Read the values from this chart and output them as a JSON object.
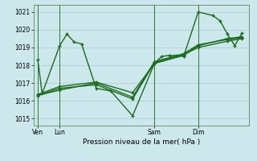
{
  "background_color": "#cce8ec",
  "grid_color": "#aacccc",
  "line_color": "#1a6b1a",
  "title": "Pression niveau de la mer( hPa )",
  "ylim": [
    1014.6,
    1021.4
  ],
  "yticks": [
    1015,
    1016,
    1017,
    1018,
    1019,
    1020,
    1021
  ],
  "x_day_labels": [
    "Ven",
    "Lun",
    "Sam",
    "Dim"
  ],
  "xlim": [
    -0.3,
    14.5
  ],
  "line1_x": [
    0.0,
    0.3,
    1.5,
    2.0,
    2.5,
    3.0,
    4.0,
    5.0,
    6.5,
    8.0,
    8.5,
    9.0,
    9.5,
    10.0,
    11.0,
    12.0,
    12.5,
    13.0,
    13.5,
    14.0
  ],
  "line1_y": [
    1018.3,
    1016.4,
    1019.1,
    1019.75,
    1019.3,
    1019.2,
    1016.7,
    1016.55,
    1015.15,
    1018.1,
    1018.5,
    1018.55,
    1018.55,
    1018.5,
    1021.0,
    1020.8,
    1020.5,
    1019.75,
    1019.1,
    1019.8
  ],
  "line2_x": [
    0.0,
    1.5,
    4.0,
    6.5,
    8.0,
    10.0,
    11.0,
    13.0,
    14.0
  ],
  "line2_y": [
    1016.35,
    1016.8,
    1017.05,
    1016.45,
    1018.1,
    1018.55,
    1019.1,
    1019.5,
    1019.6
  ],
  "line3_x": [
    0.0,
    1.5,
    4.0,
    6.5,
    8.0,
    10.0,
    11.0,
    13.0,
    14.0
  ],
  "line3_y": [
    1016.3,
    1016.7,
    1016.9,
    1016.1,
    1018.15,
    1018.6,
    1019.0,
    1019.35,
    1019.5
  ],
  "line4_x": [
    0.0,
    1.5,
    4.0,
    6.5,
    8.0,
    10.0,
    11.0,
    13.0,
    14.0
  ],
  "line4_y": [
    1016.3,
    1016.6,
    1017.0,
    1016.2,
    1018.2,
    1018.65,
    1019.15,
    1019.45,
    1019.55
  ],
  "vline_positions": [
    0.0,
    1.5,
    8.0,
    11.0
  ]
}
